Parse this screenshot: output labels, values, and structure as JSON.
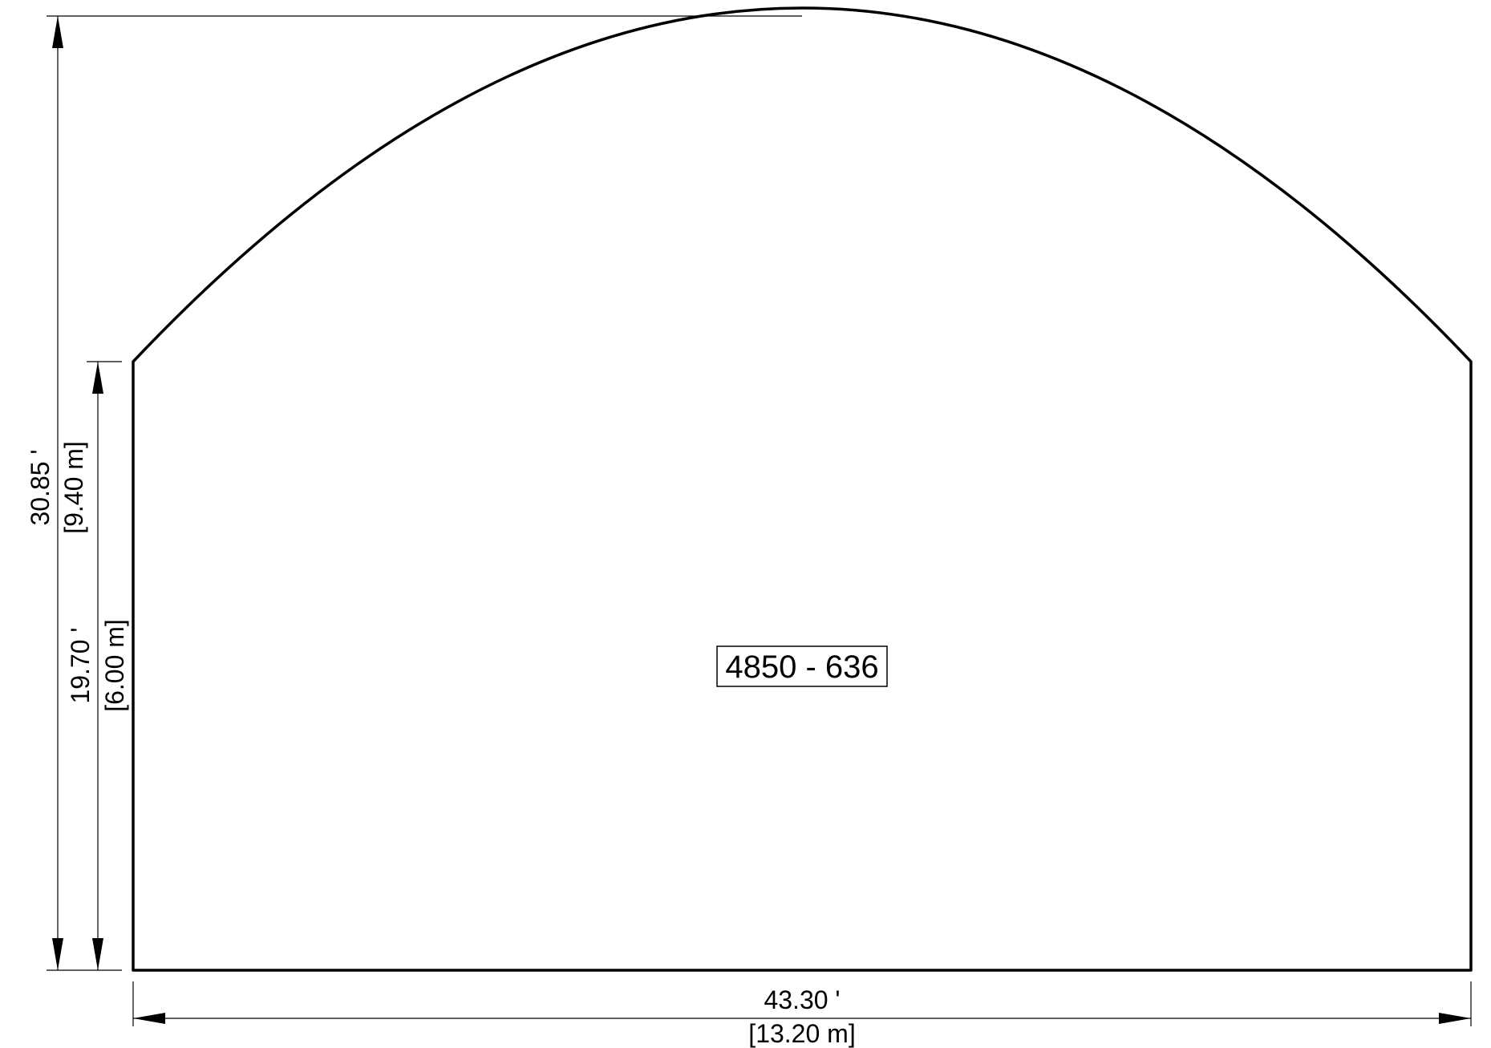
{
  "drawing": {
    "label": "4850 - 636",
    "total_height": {
      "imperial": "30.85 '",
      "metric": "[9.40 m]"
    },
    "wall_height": {
      "imperial": "19.70 '",
      "metric": "[6.00 m]"
    },
    "width": {
      "imperial": "43.30 '",
      "metric": "[13.20 m]"
    },
    "colors": {
      "stroke": "#000000",
      "background": "#ffffff"
    }
  }
}
